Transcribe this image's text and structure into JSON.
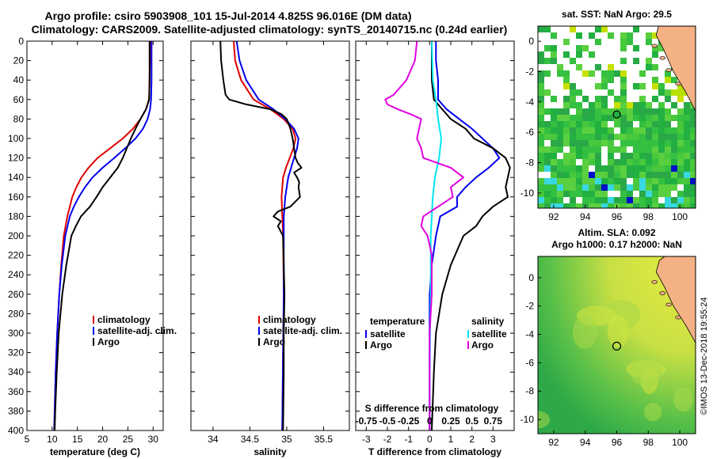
{
  "title_line1": "Argo profile: csiro 5903908_101 15-Jul-2014 4.825S 96.016E (DM data)",
  "title_line2": "Climatology: CARS2009. Satellite-adjusted climatology: synTS_20140715.nc (0.24d earlier)",
  "footer": "©IMOS 13-Dec-2018 19:55:24",
  "colors": {
    "climatology": "#e00000",
    "satellite": "#0000ee",
    "argo": "#000000",
    "sat_s": "#00e6f0",
    "argo_s": "#e000e0",
    "land": "#f4b183"
  },
  "chart_data": [
    {
      "type": "line",
      "id": "temperature",
      "xlabel": "temperature (deg C)",
      "ylabel": "",
      "xlim": [
        5,
        32
      ],
      "ylim": [
        400,
        0
      ],
      "xticks": [
        5,
        10,
        15,
        20,
        25,
        30
      ],
      "yticks": [
        0,
        20,
        40,
        60,
        80,
        100,
        120,
        140,
        160,
        180,
        200,
        220,
        240,
        260,
        280,
        300,
        320,
        340,
        360,
        380,
        400
      ],
      "legend": [
        "climatology",
        "satellite-adj. clim.",
        "Argo"
      ],
      "series": [
        {
          "name": "climatology",
          "color": "#e00000",
          "depth": [
            0,
            20,
            40,
            60,
            70,
            80,
            90,
            100,
            110,
            120,
            130,
            140,
            150,
            160,
            180,
            200,
            230,
            260,
            300,
            340,
            380,
            400
          ],
          "values": [
            29.4,
            29.4,
            29.3,
            29.2,
            28.6,
            27.5,
            26.0,
            24.0,
            21.5,
            19.0,
            17.2,
            15.8,
            14.8,
            14.0,
            13.0,
            12.3,
            11.8,
            11.4,
            11.0,
            10.7,
            10.5,
            10.4
          ]
        },
        {
          "name": "satellite-adj. clim.",
          "color": "#0000ee",
          "depth": [
            0,
            20,
            40,
            60,
            70,
            80,
            90,
            100,
            110,
            120,
            130,
            140,
            150,
            160,
            170,
            180,
            200,
            230,
            260,
            300,
            340,
            380,
            400
          ],
          "values": [
            29.7,
            29.7,
            29.7,
            29.6,
            29.4,
            28.9,
            28.0,
            26.5,
            24.5,
            22.3,
            20.0,
            18.0,
            16.5,
            15.3,
            14.3,
            13.5,
            12.6,
            11.9,
            11.4,
            11.0,
            10.7,
            10.5,
            10.4
          ]
        },
        {
          "name": "Argo",
          "color": "#000000",
          "depth": [
            0,
            20,
            40,
            60,
            70,
            80,
            90,
            100,
            110,
            120,
            130,
            140,
            150,
            160,
            170,
            180,
            190,
            200,
            230,
            260,
            300,
            340,
            380,
            400
          ],
          "values": [
            29.3,
            29.3,
            29.3,
            29.2,
            28.6,
            27.5,
            26.5,
            25.6,
            24.8,
            24.0,
            23.0,
            21.5,
            20.0,
            18.8,
            17.5,
            15.7,
            14.7,
            13.8,
            12.8,
            12.0,
            11.3,
            10.9,
            10.6,
            10.5
          ]
        }
      ]
    },
    {
      "type": "line",
      "id": "salinity",
      "xlabel": "salinity",
      "xlim": [
        33.7,
        35.85
      ],
      "ylim": [
        400,
        0
      ],
      "xticks": [
        34,
        34.5,
        35,
        35.5
      ],
      "legend": [
        "climatology",
        "satellite-adj. clim.",
        "Argo"
      ],
      "series": [
        {
          "name": "climatology",
          "color": "#e00000",
          "depth": [
            0,
            20,
            40,
            60,
            70,
            80,
            90,
            100,
            110,
            120,
            130,
            140,
            160,
            200,
            260,
            320,
            400
          ],
          "values": [
            34.28,
            34.3,
            34.38,
            34.55,
            34.78,
            34.96,
            35.08,
            35.12,
            35.09,
            35.04,
            34.99,
            34.95,
            34.93,
            34.95,
            34.96,
            34.95,
            34.94
          ]
        },
        {
          "name": "satellite-adj. clim.",
          "color": "#0000ee",
          "depth": [
            0,
            20,
            40,
            60,
            70,
            80,
            90,
            100,
            110,
            120,
            130,
            140,
            160,
            180,
            200,
            260,
            320,
            400
          ],
          "values": [
            34.32,
            34.36,
            34.45,
            34.62,
            34.82,
            34.98,
            35.1,
            35.16,
            35.14,
            35.1,
            35.06,
            35.02,
            34.98,
            34.96,
            34.96,
            34.96,
            34.95,
            34.94
          ]
        },
        {
          "name": "Argo",
          "color": "#000000",
          "depth": [
            0,
            20,
            40,
            55,
            60,
            65,
            70,
            75,
            80,
            90,
            100,
            110,
            120,
            125,
            130,
            135,
            140,
            145,
            150,
            160,
            170,
            175,
            180,
            185,
            190,
            200,
            230,
            260,
            300,
            340,
            400
          ],
          "values": [
            34.1,
            34.11,
            34.14,
            34.17,
            34.22,
            34.45,
            34.78,
            34.93,
            35.0,
            35.05,
            35.08,
            35.1,
            35.12,
            35.15,
            35.2,
            35.1,
            35.14,
            35.17,
            35.16,
            35.18,
            35.05,
            34.88,
            34.82,
            34.92,
            34.88,
            34.95,
            34.96,
            34.97,
            34.96,
            34.96,
            34.95
          ]
        }
      ]
    },
    {
      "type": "line",
      "id": "difference",
      "xlabel": "T difference from climatology",
      "xlabel_top": "S difference from climatology",
      "xlim": [
        -3.5,
        4.0
      ],
      "ylim": [
        400,
        0
      ],
      "xticks": [
        -3,
        -2,
        -1,
        0,
        1,
        2,
        3
      ],
      "top_tick_labels": [
        "-0.75",
        "-0.5",
        "-0.25",
        "0",
        "0.25",
        "0.5",
        "0.75"
      ],
      "legend": {
        "temperature_title": "temperature",
        "salinity_title": "salinity",
        "temperature": [
          "satellite",
          "Argo"
        ],
        "salinity": [
          "satellite",
          "Argo"
        ]
      },
      "series": [
        {
          "name": "T satellite",
          "color": "#0000ee",
          "depth": [
            0,
            20,
            40,
            60,
            70,
            80,
            90,
            100,
            110,
            120,
            130,
            140,
            150,
            160,
            170,
            180,
            200,
            230,
            260,
            300,
            340,
            400
          ],
          "values": [
            0.3,
            0.3,
            0.4,
            0.4,
            0.8,
            1.4,
            2.0,
            2.5,
            3.0,
            3.3,
            2.8,
            2.2,
            1.7,
            1.3,
            1.3,
            0.5,
            0.3,
            0.1,
            0.0,
            0.0,
            0.0,
            0.0
          ]
        },
        {
          "name": "T Argo",
          "color": "#000000",
          "depth": [
            0,
            20,
            40,
            60,
            70,
            80,
            90,
            100,
            110,
            120,
            130,
            140,
            150,
            160,
            170,
            180,
            190,
            200,
            230,
            260,
            300,
            340,
            400
          ],
          "values": [
            0.1,
            0.1,
            0.1,
            0.2,
            0.6,
            1.0,
            1.7,
            2.1,
            3.0,
            3.6,
            3.8,
            3.7,
            3.6,
            3.7,
            3.0,
            2.5,
            2.2,
            1.6,
            1.0,
            0.6,
            0.3,
            0.2,
            0.1
          ]
        },
        {
          "name": "S satellite",
          "color": "#00e6f0",
          "depth": [
            0,
            40,
            60,
            80,
            100,
            120,
            140,
            160,
            200,
            260,
            300,
            360,
            400
          ],
          "values": [
            0.1,
            0.15,
            0.3,
            0.4,
            0.55,
            0.45,
            0.25,
            0.15,
            0.05,
            0.05,
            0.02,
            0.0,
            0.0
          ]
        },
        {
          "name": "S Argo",
          "color": "#e000e0",
          "depth": [
            0,
            20,
            40,
            55,
            60,
            65,
            70,
            75,
            80,
            90,
            100,
            110,
            120,
            130,
            140,
            150,
            160,
            180,
            190,
            200,
            220,
            260,
            300,
            340,
            400
          ],
          "values": [
            -0.6,
            -0.7,
            -1.1,
            -1.7,
            -2.1,
            -2.0,
            -1.5,
            -0.9,
            -0.4,
            -0.5,
            -0.6,
            -0.4,
            -0.3,
            1.0,
            1.6,
            1.0,
            1.1,
            -0.3,
            -0.4,
            -0.1,
            0.1,
            0.1,
            0.0,
            0.0,
            0.0
          ]
        }
      ]
    },
    {
      "type": "heatmap",
      "id": "sst_map",
      "title": "sat. SST: NaN Argo: 29.5",
      "xlim": [
        91,
        101
      ],
      "ylim": [
        -11,
        1
      ],
      "xticks": [
        92,
        94,
        96,
        98,
        100
      ],
      "yticks": [
        0,
        -2,
        -4,
        -6,
        -8,
        -10
      ],
      "marker": {
        "lon": 96.0,
        "lat": -4.825
      }
    },
    {
      "type": "heatmap",
      "id": "sla_map",
      "title": "Altim. SLA: 0.092",
      "title2": "Argo h1000: 0.17 h2000: NaN",
      "xlim": [
        91,
        101
      ],
      "ylim": [
        -11,
        1.5
      ],
      "xticks": [
        92,
        94,
        96,
        98,
        100
      ],
      "yticks": [
        0,
        -2,
        -4,
        -6,
        -8,
        -10
      ],
      "marker": {
        "lon": 96.0,
        "lat": -4.825
      }
    }
  ]
}
